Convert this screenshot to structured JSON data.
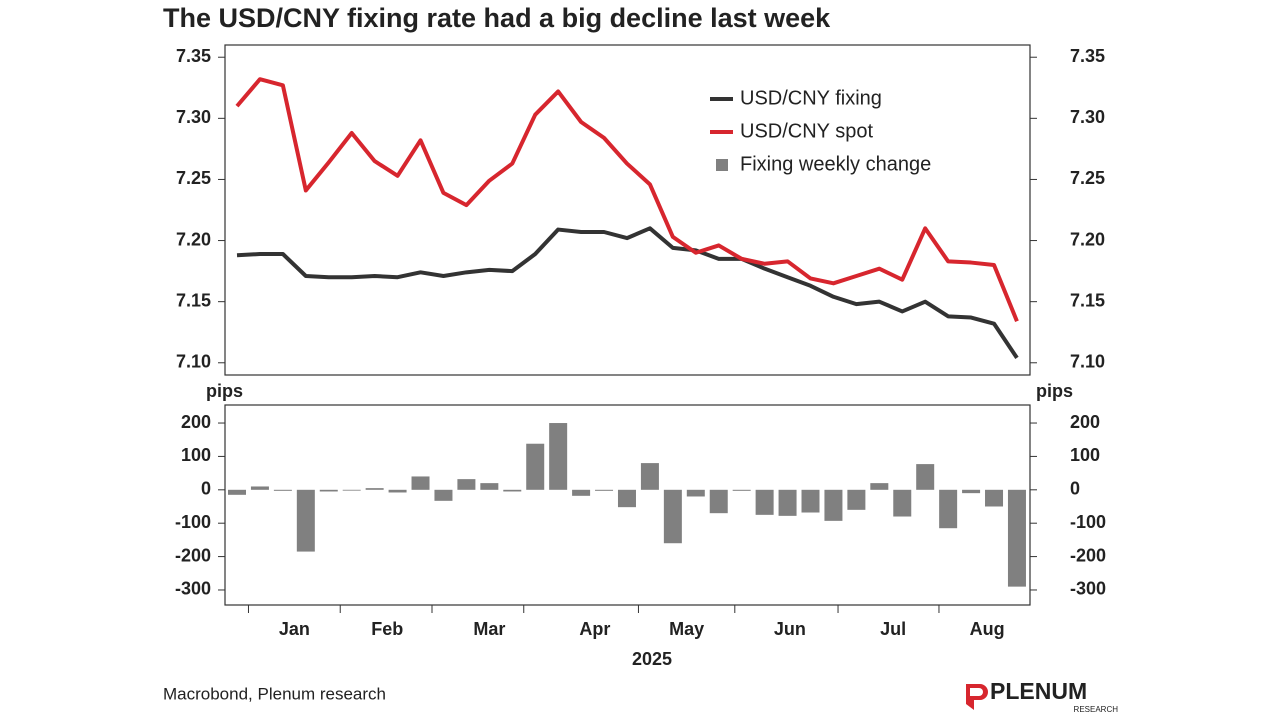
{
  "title": "The USD/CNY fixing rate had a big decline last week",
  "source": "Macrobond, Plenum research",
  "logo": {
    "name": "PLENUM",
    "sub": "RESEARCH"
  },
  "chart_data": [
    {
      "type": "line",
      "ylim": [
        7.09,
        7.36
      ],
      "yticks": [
        {
          "value": 7.1,
          "label": "7.10"
        },
        7.15,
        {
          "value": 7.2,
          "label": "7.20"
        },
        7.25,
        {
          "value": 7.3,
          "label": "7.30"
        },
        7.35
      ],
      "series": [
        {
          "name": "USD/CNY fixing",
          "color": "#333333",
          "values": [
            7.188,
            7.189,
            7.189,
            7.171,
            7.17,
            7.17,
            7.171,
            7.17,
            7.174,
            7.171,
            7.174,
            7.176,
            7.175,
            7.189,
            7.209,
            7.207,
            7.207,
            7.202,
            7.21,
            7.194,
            7.192,
            7.185,
            7.185,
            7.177,
            7.17,
            7.163,
            7.154,
            7.148,
            7.15,
            7.142,
            7.15,
            7.138,
            7.137,
            7.132,
            7.104
          ]
        },
        {
          "name": "USD/CNY spot",
          "color": "#d7262e",
          "values": [
            7.31,
            7.332,
            7.327,
            7.241,
            7.264,
            7.288,
            7.265,
            7.253,
            7.282,
            7.239,
            7.229,
            7.249,
            7.263,
            7.303,
            7.322,
            7.297,
            7.284,
            7.263,
            7.246,
            7.203,
            7.19,
            7.196,
            7.185,
            7.181,
            7.183,
            7.169,
            7.165,
            7.171,
            7.177,
            7.168,
            7.21,
            7.183,
            7.182,
            7.18,
            7.134
          ]
        }
      ]
    },
    {
      "type": "bar",
      "ylabel": "pips",
      "ylim": [
        -345,
        254
      ],
      "yticks": [
        -300,
        -200,
        -100,
        0,
        100,
        200
      ],
      "month_labels": [
        "Jan",
        "Feb",
        "Mar",
        "Apr",
        "May",
        "Jun",
        "Jul",
        "Aug"
      ],
      "xlabel": "2025",
      "series": [
        {
          "name": "Fixing weekly change",
          "color": "#808080",
          "values": [
            -15,
            10,
            -3,
            -185,
            -5,
            0,
            5,
            -8,
            40,
            -33,
            32,
            20,
            -5,
            138,
            200,
            -18,
            -3,
            -52,
            80,
            -160,
            -20,
            -70,
            -3,
            -75,
            -78,
            -68,
            -93,
            -60,
            20,
            -80,
            77,
            -115,
            -10,
            -50,
            -290
          ]
        }
      ]
    }
  ]
}
